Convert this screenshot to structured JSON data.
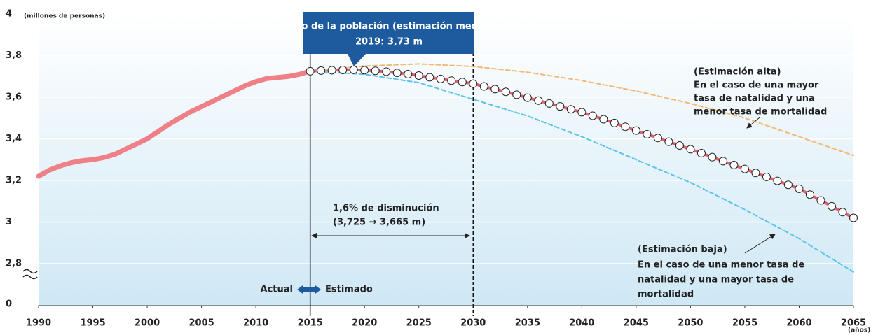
{
  "chart_data": {
    "type": "line",
    "y_unit": "(millones de personas)",
    "x_unit": "(años)",
    "xlim": [
      1990,
      2065
    ],
    "xticks": [
      1990,
      1995,
      2000,
      2005,
      2010,
      2015,
      2020,
      2025,
      2030,
      2035,
      2040,
      2045,
      2050,
      2055,
      2060,
      2065
    ],
    "ylim": [
      2.6,
      4
    ],
    "yticks": [
      0,
      {
        "value": 2.8,
        "label": "2,8"
      },
      3,
      {
        "value": 3.2,
        "label": "3,2"
      },
      {
        "value": 3.4,
        "label": "3,4"
      },
      {
        "value": 3.6,
        "label": "3,6"
      },
      {
        "value": 3.8,
        "label": "3,8"
      },
      4
    ],
    "axis_break": [
      0,
      2.8
    ],
    "grid": true,
    "vlines": [
      2015,
      2030
    ],
    "series": [
      {
        "color": "#ef8088",
        "x": [
          1990,
          1991,
          1992,
          1993,
          1994,
          1995,
          1996,
          1997,
          1998,
          1999,
          2000,
          2001,
          2002,
          2003,
          2004,
          2005,
          2006,
          2007,
          2008,
          2009,
          2010,
          2011,
          2012,
          2013,
          2014,
          2015
        ],
        "values": [
          3.22,
          3.25,
          3.27,
          3.285,
          3.295,
          3.3,
          3.31,
          3.325,
          3.35,
          3.375,
          3.4,
          3.435,
          3.47,
          3.5,
          3.53,
          3.555,
          3.58,
          3.605,
          3.63,
          3.655,
          3.675,
          3.69,
          3.695,
          3.7,
          3.71,
          3.725
        ]
      },
      {
        "color": "#e0606e",
        "markers": true,
        "x": [
          2015,
          2016,
          2017,
          2018,
          2019,
          2020,
          2021,
          2022,
          2023,
          2024,
          2025,
          2026,
          2027,
          2028,
          2029,
          2030,
          2031,
          2032,
          2033,
          2034,
          2035,
          2036,
          2037,
          2038,
          2039,
          2040,
          2041,
          2042,
          2043,
          2044,
          2045,
          2046,
          2047,
          2048,
          2049,
          2050,
          2051,
          2052,
          2053,
          2054,
          2055,
          2056,
          2057,
          2058,
          2059,
          2060,
          2061,
          2062,
          2063,
          2064,
          2065
        ],
        "values": [
          3.725,
          3.728,
          3.73,
          3.731,
          3.732,
          3.73,
          3.727,
          3.723,
          3.717,
          3.711,
          3.704,
          3.696,
          3.688,
          3.68,
          3.673,
          3.665,
          3.652,
          3.639,
          3.626,
          3.612,
          3.598,
          3.584,
          3.57,
          3.556,
          3.542,
          3.528,
          3.511,
          3.494,
          3.476,
          3.458,
          3.44,
          3.422,
          3.404,
          3.386,
          3.368,
          3.35,
          3.331,
          3.312,
          3.293,
          3.274,
          3.255,
          3.236,
          3.217,
          3.198,
          3.179,
          3.16,
          3.132,
          3.104,
          3.076,
          3.048,
          3.02
        ]
      },
      {
        "color": "#f4b978",
        "dashed": true,
        "x": [
          2015,
          2020,
          2025,
          2030,
          2035,
          2040,
          2045,
          2050,
          2055,
          2060,
          2065
        ],
        "values": [
          3.725,
          3.75,
          3.76,
          3.748,
          3.72,
          3.68,
          3.63,
          3.57,
          3.5,
          3.41,
          3.32
        ]
      },
      {
        "color": "#5cc3ea",
        "dashed": true,
        "x": [
          2015,
          2020,
          2025,
          2030,
          2035,
          2040,
          2045,
          2050,
          2055,
          2060,
          2065
        ],
        "values": [
          3.725,
          3.71,
          3.67,
          3.59,
          3.51,
          3.41,
          3.3,
          3.19,
          3.06,
          2.92,
          2.76
        ]
      }
    ],
    "callout": {
      "title": "Pico de la población (estimación media)",
      "text": "2019: 3,73 m"
    },
    "decline": [
      "1,6% de disminución",
      "(3,725 → 3,665 m)"
    ],
    "high_label": [
      "(Estimación alta)",
      "En el caso de una mayor",
      "tasa de natalidad y una",
      "menor tasa de mortalidad"
    ],
    "low_label": [
      "(Estimación baja)",
      "En el caso de una menor tasa de",
      "natalidad y una mayor tasa de",
      "mortalidad"
    ],
    "actual": "Actual",
    "estimated": "Estimado"
  }
}
